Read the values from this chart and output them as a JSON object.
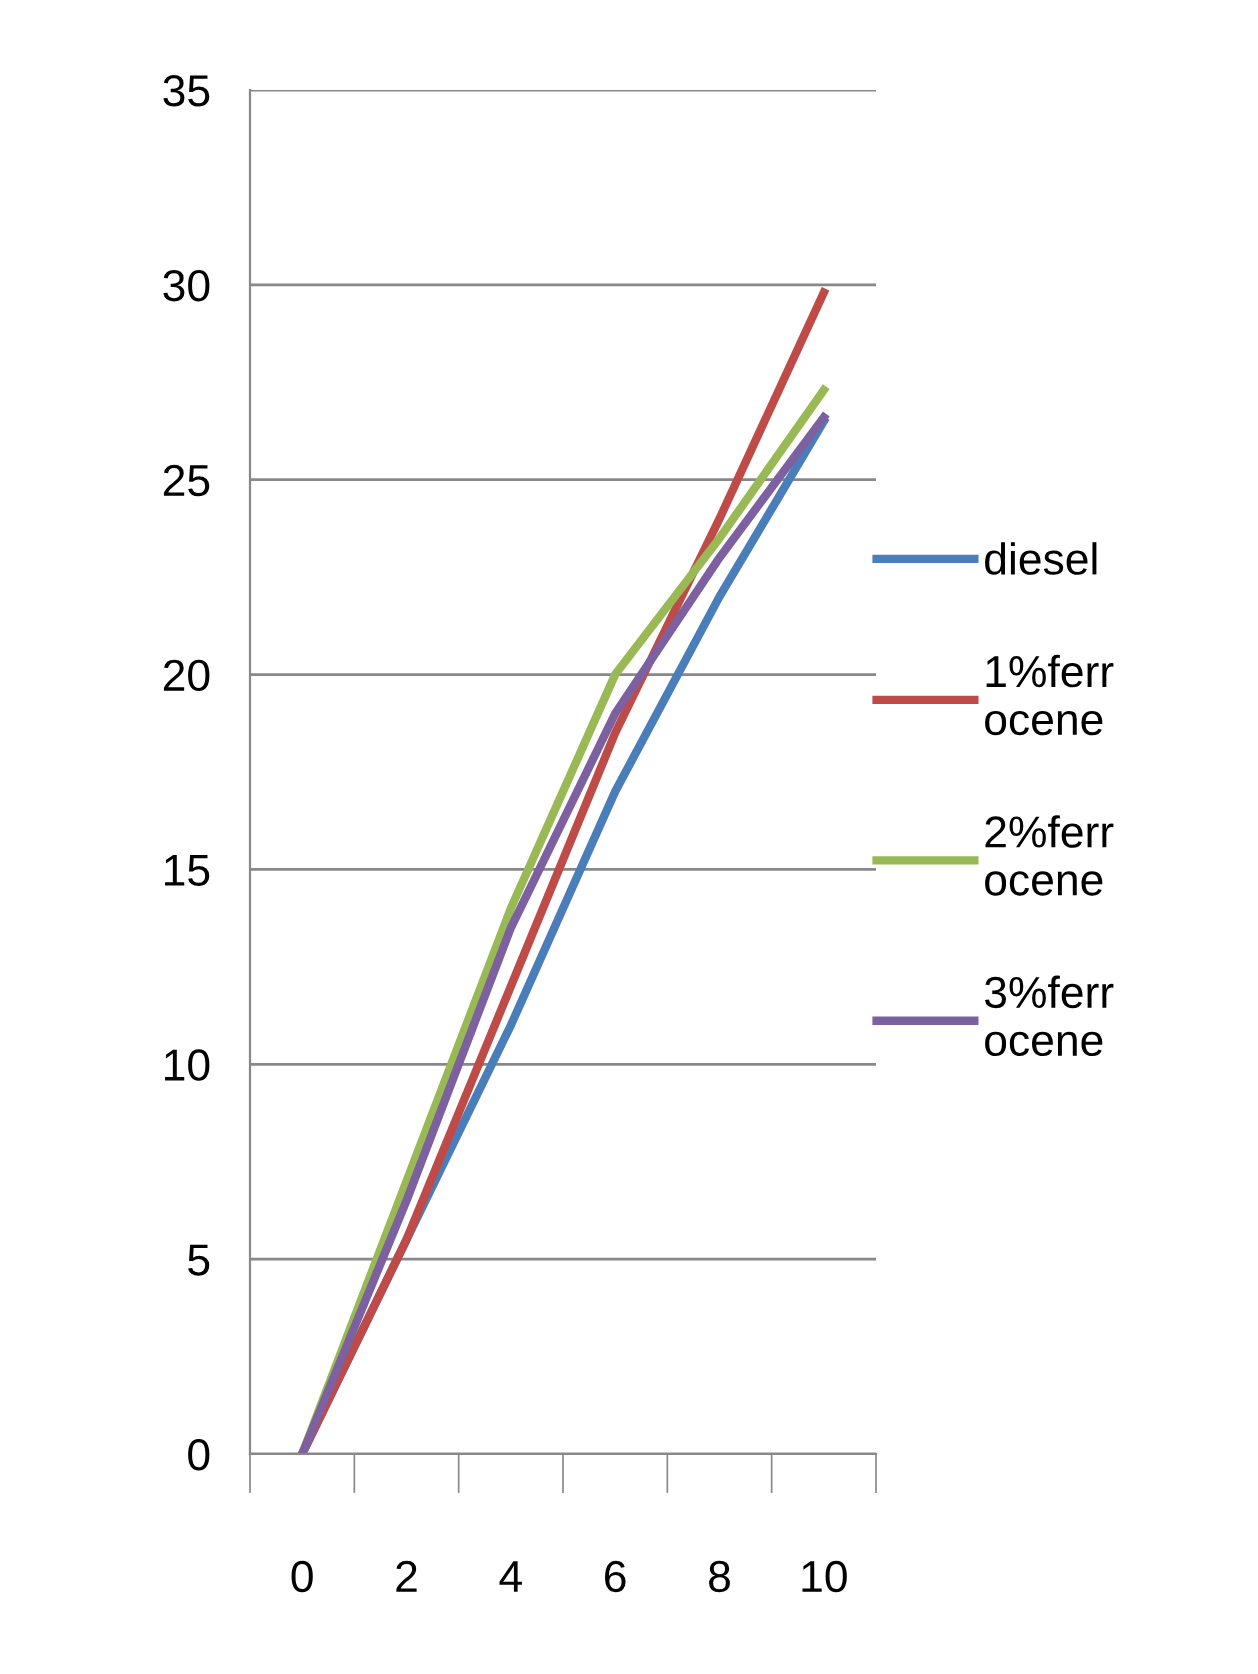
{
  "chart_data": {
    "type": "line",
    "categories": [
      "0",
      "2",
      "4",
      "6",
      "8",
      "10"
    ],
    "series": [
      {
        "name": "diesel",
        "color": "#4a7ebb",
        "values": [
          0,
          5.5,
          11,
          17,
          22,
          26.5
        ]
      },
      {
        "name": "1%ferr\nocene",
        "color": "#be4b48",
        "values": [
          0,
          5.5,
          12,
          18.5,
          24,
          29.8
        ]
      },
      {
        "name": "2%ferr\nocene",
        "color": "#98b954",
        "values": [
          0,
          7,
          14,
          20,
          23.5,
          27.3
        ]
      },
      {
        "name": "3%ferr\nocene",
        "color": "#7d60a0",
        "values": [
          0,
          6.5,
          13.5,
          19,
          23,
          26.6
        ]
      }
    ],
    "ylim": [
      0,
      35
    ],
    "yticks": [
      0,
      5,
      10,
      15,
      20,
      25,
      30,
      35
    ],
    "grid": "y",
    "legend": "right",
    "marker": "none",
    "line_style": "solid"
  }
}
